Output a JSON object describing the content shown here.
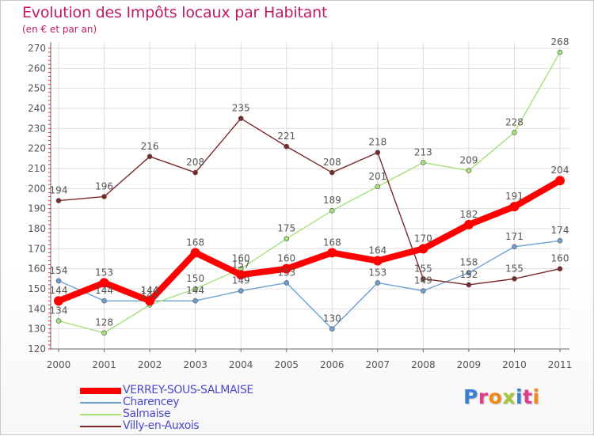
{
  "header": {
    "title": "Evolution des Impôts locaux par Habitant",
    "subtitle": "(en € et par an)"
  },
  "logo": {
    "text": "Proxiti",
    "letter_colors": [
      "#3b7fd4",
      "#e23c8c",
      "#f08a1c",
      "#a8c83a",
      "#3b7fd4",
      "#e23c8c",
      "#f08a1c"
    ]
  },
  "chart_data": {
    "type": "line",
    "title": "Evolution des Impôts locaux par Habitant",
    "subtitle": "(en € et par an)",
    "xlabel": "",
    "ylabel": "",
    "x": [
      "2000",
      "2001",
      "2002",
      "2003",
      "2004",
      "2005",
      "2006",
      "2007",
      "2008",
      "2009",
      "2010",
      "2011"
    ],
    "ylim": [
      120,
      270
    ],
    "yticks": [
      120,
      130,
      140,
      150,
      160,
      170,
      180,
      190,
      200,
      210,
      220,
      230,
      240,
      250,
      260,
      270
    ],
    "grid": true,
    "legend_position": "bottom-left",
    "series": [
      {
        "name": "VERREY-SOUS-SALMAISE",
        "color": "#ff0000",
        "values": [
          144,
          153,
          144,
          168,
          157,
          160,
          168,
          164,
          170,
          182,
          191,
          204
        ],
        "labels": [
          "144",
          "153",
          "144",
          "168",
          "157",
          "160",
          "168",
          "164",
          "170",
          "182",
          "191",
          "204"
        ]
      },
      {
        "name": "Charencey",
        "color": "#6f9fd0",
        "values": [
          154,
          144,
          144,
          144,
          149,
          153,
          130,
          153,
          149,
          158,
          171,
          174
        ],
        "labels": [
          "154",
          "144",
          "144",
          "144",
          "149",
          "153",
          "130",
          "153",
          "149",
          "158",
          "171",
          "174"
        ]
      },
      {
        "name": "Salmaise",
        "color": "#a6e07a",
        "values": [
          134,
          128,
          142,
          150,
          160,
          175,
          189,
          201,
          213,
          209,
          228,
          268
        ],
        "labels": [
          "134",
          "128",
          "142",
          "150",
          "160",
          "175",
          "189",
          "201",
          "213",
          "209",
          "228",
          "268"
        ]
      },
      {
        "name": "Villy-en-Auxois",
        "color": "#7a2a2a",
        "values": [
          194,
          196,
          216,
          208,
          235,
          221,
          208,
          218,
          155,
          152,
          155,
          160
        ],
        "labels": [
          "194",
          "196",
          "216",
          "208",
          "235",
          "221",
          "208",
          "218",
          "155",
          "152",
          "155",
          "160"
        ]
      }
    ]
  }
}
